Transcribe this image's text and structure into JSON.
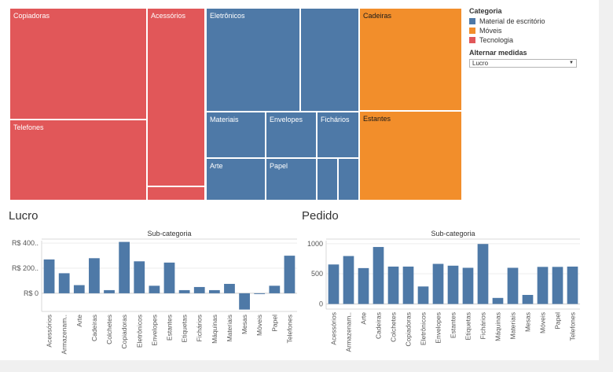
{
  "treemap": {
    "tiles": [
      {
        "label": "Copiadoras",
        "category": "Tecnologia"
      },
      {
        "label": "Acessórios",
        "category": "Tecnologia"
      },
      {
        "label": "Telefones",
        "category": "Tecnologia"
      },
      {
        "label": "",
        "category": "Tecnologia"
      },
      {
        "label": "Eletrônicos",
        "category": "Material de escritório"
      },
      {
        "label": "",
        "category": "Material de escritório"
      },
      {
        "label": "Materiais",
        "category": "Material de escritório"
      },
      {
        "label": "Envelopes",
        "category": "Material de escritório"
      },
      {
        "label": "Fichários",
        "category": "Material de escritório"
      },
      {
        "label": "Arte",
        "category": "Material de escritório"
      },
      {
        "label": "Papel",
        "category": "Material de escritório"
      },
      {
        "label": "",
        "category": "Material de escritório"
      },
      {
        "label": "",
        "category": "Material de escritório"
      },
      {
        "label": "Cadeiras",
        "category": "Móveis"
      },
      {
        "label": "Estantes",
        "category": "Móveis"
      }
    ]
  },
  "legend": {
    "title": "Categoria",
    "items": [
      {
        "label": "Material de escritório",
        "color": "#4e79a7"
      },
      {
        "label": "Móveis",
        "color": "#f28e2b"
      },
      {
        "label": "Tecnologia",
        "color": "#e15759"
      }
    ]
  },
  "measure_control": {
    "title": "Alternar medidas",
    "value": "Lucro"
  },
  "sections": {
    "left_title": "Lucro",
    "right_title": "Pedido"
  },
  "chart_data": [
    {
      "type": "bar",
      "title": "Sub-categoria",
      "ylabel": "",
      "bar_color": "#4e79a7",
      "categories": [
        "Acessórios",
        "Armazenam..",
        "Arte",
        "Cadeiras",
        "Colchetes",
        "Copiadoras",
        "Eletrônicos",
        "Envelopes",
        "Estantes",
        "Etiquetas",
        "Fichários",
        "Máquinas",
        "Materiais",
        "Mesas",
        "Móveis",
        "Papel",
        "Telefones"
      ],
      "values": [
        270,
        160,
        65,
        280,
        25,
        410,
        255,
        60,
        245,
        25,
        50,
        25,
        75,
        -130,
        -5,
        60,
        300
      ],
      "ylim": [
        -145,
        420
      ],
      "yticks": [
        {
          "value": 0,
          "label": "R$ 0"
        },
        {
          "value": 200,
          "label": "R$ 200.."
        },
        {
          "value": 400,
          "label": "R$ 400.."
        }
      ]
    },
    {
      "type": "bar",
      "title": "Sub-categoria",
      "ylabel": "",
      "bar_color": "#4e79a7",
      "categories": [
        "Acessórios",
        "Armazenam..",
        "Arte",
        "Cadeiras",
        "Colchetes",
        "Copiadoras",
        "Eletrônicos",
        "Envelopes",
        "Estantes",
        "Etiquetas",
        "Fichários",
        "Máquinas",
        "Materiais",
        "Mesas",
        "Móveis",
        "Papel",
        "Telefones"
      ],
      "values": [
        655,
        795,
        595,
        945,
        620,
        620,
        290,
        665,
        635,
        600,
        995,
        100,
        600,
        150,
        615,
        615,
        620
      ],
      "ylim": [
        -85,
        1050
      ],
      "yticks": [
        {
          "value": 0,
          "label": "0"
        },
        {
          "value": 500,
          "label": "500"
        },
        {
          "value": 1000,
          "label": "1000"
        }
      ]
    }
  ]
}
